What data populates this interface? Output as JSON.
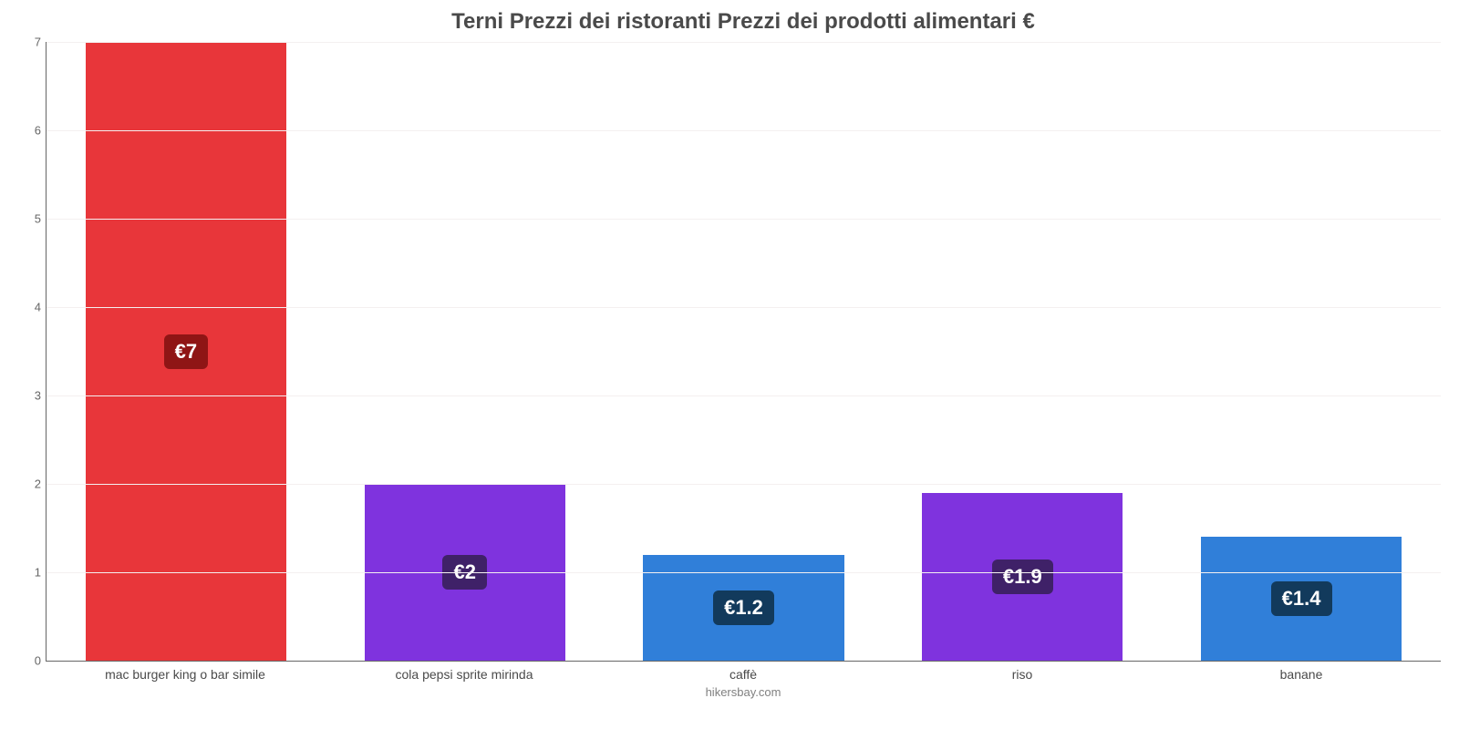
{
  "chart": {
    "type": "bar",
    "title": "Terni Prezzi dei ristoranti Prezzi dei prodotti alimentari €",
    "title_fontsize": 24,
    "title_color": "#4a4a4a",
    "credit": "hikersbay.com",
    "credit_color": "#808080",
    "background_color": "#ffffff",
    "grid_color": "#f4f0f0",
    "axis_color": "#666666",
    "ylim": [
      0,
      7
    ],
    "yticks": [
      0,
      1,
      2,
      3,
      4,
      5,
      6,
      7
    ],
    "tick_fontsize": 13,
    "xlabel_fontsize": 14,
    "bar_width": 0.72,
    "value_badge": {
      "fontsize": 22,
      "radius": 6,
      "text_color": "#ffffff"
    },
    "categories": [
      "mac burger king o bar simile",
      "cola pepsi sprite mirinda",
      "caffè",
      "riso",
      "banane"
    ],
    "values": [
      7,
      2,
      1.2,
      1.9,
      1.4
    ],
    "display_values": [
      "€7",
      "€2",
      "€1.2",
      "€1.9",
      "€1.4"
    ],
    "bar_colors": [
      "#e8363a",
      "#7f33de",
      "#307fd9",
      "#7f33de",
      "#307fd9"
    ],
    "badge_colors": [
      "#8f1515",
      "#3f2168",
      "#123a5c",
      "#3f2168",
      "#123a5c"
    ]
  }
}
